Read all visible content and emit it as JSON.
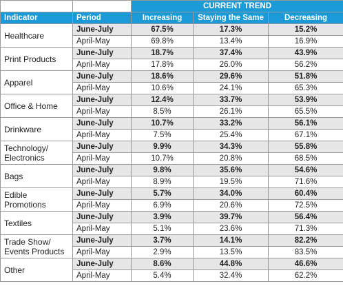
{
  "table": {
    "group_header": "CURRENT TREND",
    "columns": [
      "Indicator",
      "Period",
      "Increasing",
      "Staying the Same",
      "Decreasing"
    ],
    "groups": [
      {
        "indicator": "Healthcare",
        "rows": [
          [
            "June-July",
            "67.5%",
            "17.3%",
            "15.2%"
          ],
          [
            "April-May",
            "69.8%",
            "13.4%",
            "16.9%"
          ]
        ]
      },
      {
        "indicator": "Print Products",
        "rows": [
          [
            "June-July",
            "18.7%",
            "37.4%",
            "43.9%"
          ],
          [
            "April-May",
            "17.8%",
            "26.0%",
            "56.2%"
          ]
        ]
      },
      {
        "indicator": "Apparel",
        "rows": [
          [
            "June-July",
            "18.6%",
            "29.6%",
            "51.8%"
          ],
          [
            "April-May",
            "10.6%",
            "24.1%",
            "65.3%"
          ]
        ]
      },
      {
        "indicator": "Office & Home",
        "rows": [
          [
            "June-July",
            "12.4%",
            "33.7%",
            "53.9%"
          ],
          [
            "April-May",
            "8.5%",
            "26.1%",
            "65.5%"
          ]
        ]
      },
      {
        "indicator": "Drinkware",
        "rows": [
          [
            "June-July",
            "10.7%",
            "33.2%",
            "56.1%"
          ],
          [
            "April-May",
            "7.5%",
            "25.4%",
            "67.1%"
          ]
        ]
      },
      {
        "indicator": "Technology/ Electronics",
        "rows": [
          [
            "June-July",
            "9.9%",
            "34.3%",
            "55.8%"
          ],
          [
            "April-May",
            "10.7%",
            "20.8%",
            "68.5%"
          ]
        ]
      },
      {
        "indicator": "Bags",
        "rows": [
          [
            "June-July",
            "9.8%",
            "35.6%",
            "54.6%"
          ],
          [
            "April-May",
            "8.9%",
            "19.5%",
            "71.6%"
          ]
        ]
      },
      {
        "indicator": "Edible Promotions",
        "rows": [
          [
            "June-July",
            "5.7%",
            "34.0%",
            "60.4%"
          ],
          [
            "April-May",
            "6.9%",
            "20.6%",
            "72.5%"
          ]
        ]
      },
      {
        "indicator": "Textiles",
        "rows": [
          [
            "June-July",
            "3.9%",
            "39.7%",
            "56.4%"
          ],
          [
            "April-May",
            "5.1%",
            "23.6%",
            "71.3%"
          ]
        ]
      },
      {
        "indicator": "Trade Show/ Events Products",
        "rows": [
          [
            "June-July",
            "3.7%",
            "14.1%",
            "82.2%"
          ],
          [
            "April-May",
            "2.9%",
            "13.5%",
            "83.5%"
          ]
        ]
      },
      {
        "indicator": "Other",
        "rows": [
          [
            "June-July",
            "8.6%",
            "44.8%",
            "46.6%"
          ],
          [
            "April-May",
            "5.4%",
            "32.4%",
            "62.2%"
          ]
        ]
      }
    ]
  }
}
